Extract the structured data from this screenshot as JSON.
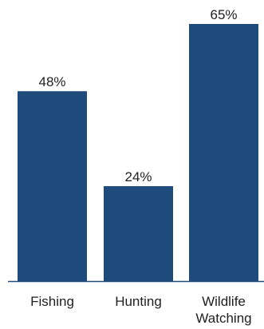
{
  "chart_data": {
    "type": "bar",
    "categories": [
      "Fishing",
      "Hunting",
      "Wildlife Watching"
    ],
    "category_lines": [
      [
        "Fishing"
      ],
      [
        "Hunting"
      ],
      [
        "Wildlife",
        "Watching"
      ]
    ],
    "values": [
      48,
      24,
      65
    ],
    "data_labels": [
      "48%",
      "24%",
      "65%"
    ],
    "ylim": [
      0,
      65
    ],
    "grid": false,
    "legend": "none",
    "colors": {
      "bar": "#1f4a7c",
      "axis": "#1f4a7c",
      "text": "#1f1f1f"
    }
  }
}
